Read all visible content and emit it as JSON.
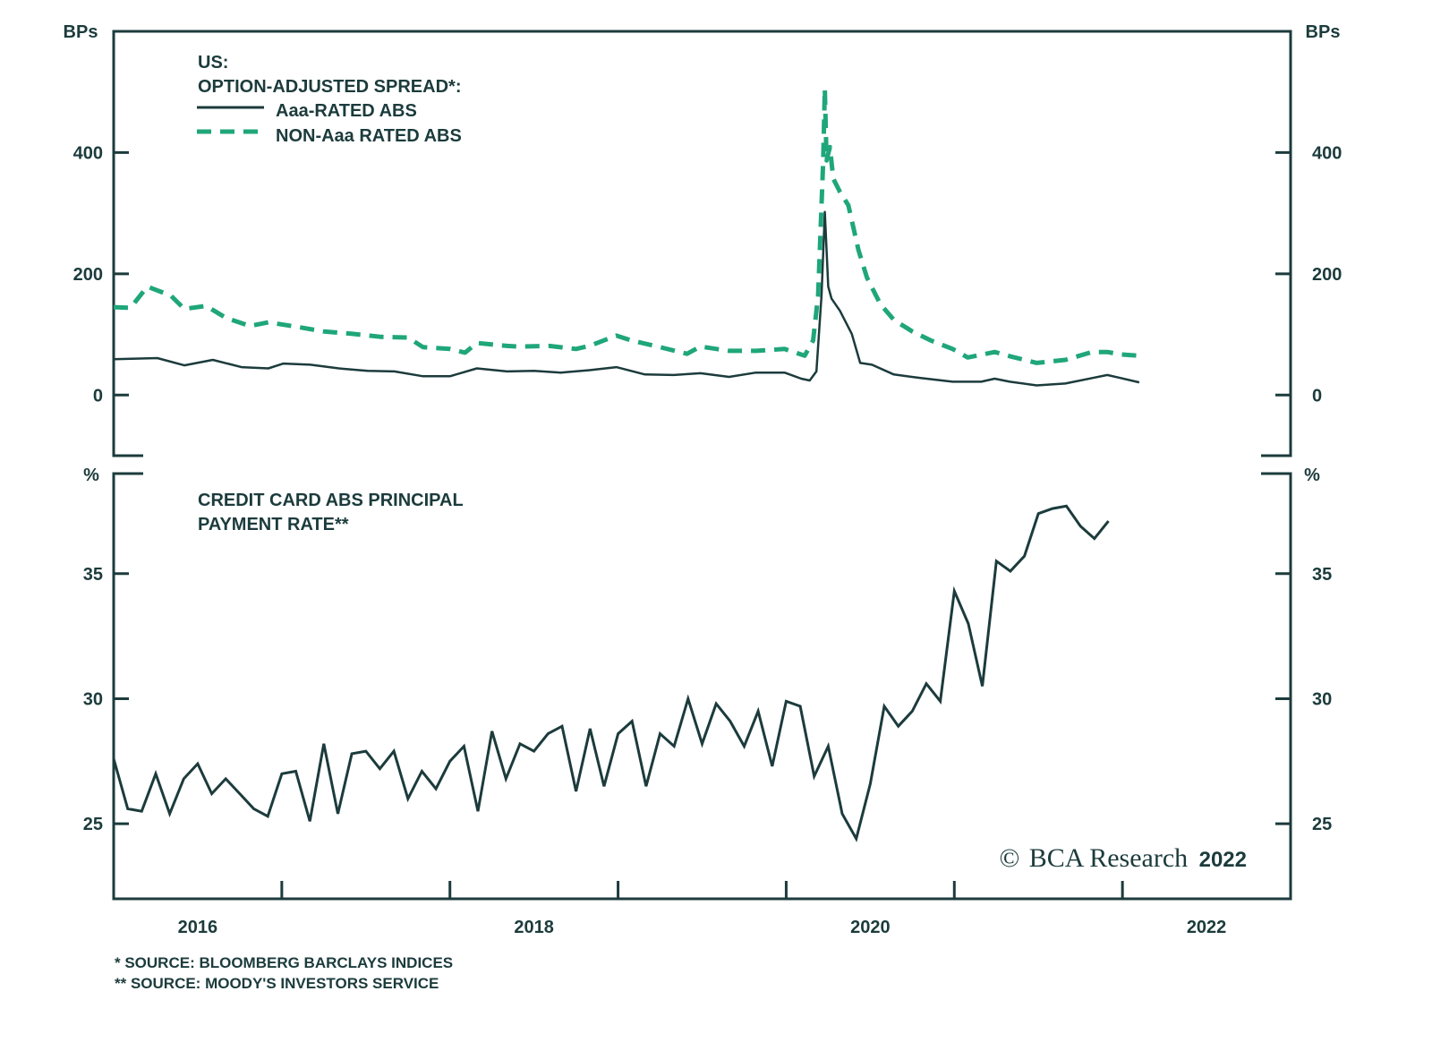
{
  "colors": {
    "dark": "#1c3b3c",
    "green": "#1fa67a"
  },
  "chart_data": [
    {
      "type": "line",
      "title": "US: OPTION-ADJUSTED SPREAD*:",
      "title_line1": "US:",
      "title_line2": "OPTION-ADJUSTED SPREAD*:",
      "ylabel": "BPs",
      "ylim": [
        -100,
        600
      ],
      "yticks": [
        0,
        200,
        400
      ],
      "ytick_labels": [
        "0",
        "200",
        "400"
      ],
      "xlim": [
        2016,
        2023
      ],
      "legend_placement": "top-left",
      "series": [
        {
          "name": "Aaa-RATED ABS",
          "style": "solid",
          "x": [
            2016.0,
            2016.26,
            2016.42,
            2016.59,
            2016.76,
            2016.92,
            2017.01,
            2017.17,
            2017.34,
            2017.51,
            2017.67,
            2017.84,
            2018.0,
            2018.16,
            2018.34,
            2018.5,
            2018.66,
            2018.83,
            2018.99,
            2019.16,
            2019.33,
            2019.49,
            2019.66,
            2019.82,
            2019.99,
            2020.09,
            2020.14,
            2020.18,
            2020.21,
            2020.23,
            2020.25,
            2020.27,
            2020.32,
            2020.39,
            2020.44,
            2020.51,
            2020.64,
            2020.8,
            2020.99,
            2021.16,
            2021.24,
            2021.33,
            2021.49,
            2021.66,
            2021.82,
            2021.91,
            2021.99,
            2022.1
          ],
          "y": [
            59,
            61,
            49,
            58,
            46,
            44,
            52,
            50,
            44,
            40,
            39,
            31,
            31,
            44,
            39,
            40,
            37,
            41,
            46,
            34,
            33,
            36,
            30,
            37,
            37,
            27,
            24,
            39,
            164,
            302,
            179,
            159,
            139,
            101,
            53,
            50,
            34,
            28,
            22,
            22,
            27,
            22,
            16,
            19,
            28,
            33,
            28,
            21
          ]
        },
        {
          "name": "NON-Aaa RATED ABS",
          "style": "dashed",
          "x": [
            2016.0,
            2016.1,
            2016.2,
            2016.34,
            2016.42,
            2016.55,
            2016.67,
            2016.81,
            2016.92,
            2017.08,
            2017.25,
            2017.42,
            2017.59,
            2017.75,
            2017.84,
            2018.0,
            2018.09,
            2018.16,
            2018.34,
            2018.41,
            2018.59,
            2018.75,
            2018.83,
            2018.99,
            2019.08,
            2019.25,
            2019.41,
            2019.49,
            2019.66,
            2019.82,
            2019.99,
            2020.11,
            2020.16,
            2020.19,
            2020.22,
            2020.23,
            2020.24,
            2020.26,
            2020.28,
            2020.32,
            2020.37,
            2020.43,
            2020.48,
            2020.56,
            2020.64,
            2020.75,
            2020.86,
            2020.99,
            2021.08,
            2021.24,
            2021.33,
            2021.49,
            2021.66,
            2021.82,
            2021.91,
            2021.99,
            2022.1
          ],
          "y": [
            145,
            144,
            179,
            164,
            142,
            147,
            127,
            114,
            120,
            113,
            105,
            101,
            96,
            95,
            79,
            76,
            70,
            86,
            81,
            80,
            81,
            76,
            81,
            98,
            90,
            79,
            68,
            80,
            73,
            73,
            76,
            65,
            90,
            164,
            387,
            505,
            387,
            409,
            357,
            335,
            313,
            239,
            194,
            150,
            124,
            105,
            90,
            76,
            62,
            71,
            64,
            53,
            58,
            71,
            71,
            67,
            65
          ]
        }
      ]
    },
    {
      "type": "line",
      "title": "CREDIT CARD ABS PRINCIPAL PAYMENT RATE**",
      "title_line1": "CREDIT CARD ABS PRINCIPAL",
      "title_line2": "PAYMENT RATE**",
      "ylabel": "%",
      "ylim": [
        22,
        39
      ],
      "yticks": [
        25,
        30,
        35
      ],
      "ytick_labels": [
        "25",
        "30",
        "35"
      ],
      "xlim": [
        2016,
        2023
      ],
      "xtick_labels": [
        "2016",
        "2018",
        "2020",
        "2022"
      ],
      "x_start": "2016-01",
      "x_frequency": "monthly",
      "series": [
        {
          "name": "CREDIT CARD ABS PRINCIPAL PAYMENT RATE",
          "style": "solid",
          "y": [
            27.6,
            25.6,
            25.5,
            27.0,
            25.4,
            26.8,
            27.4,
            26.2,
            26.8,
            26.2,
            25.6,
            25.3,
            27.0,
            27.1,
            25.1,
            28.2,
            25.4,
            27.8,
            27.9,
            27.2,
            27.9,
            26.0,
            27.1,
            26.4,
            27.5,
            28.1,
            25.5,
            28.7,
            26.8,
            28.2,
            27.9,
            28.6,
            28.9,
            26.3,
            28.8,
            26.5,
            28.6,
            29.1,
            26.5,
            28.6,
            28.1,
            30.0,
            28.2,
            29.8,
            29.1,
            28.1,
            29.5,
            27.3,
            29.9,
            29.7,
            26.9,
            28.1,
            25.4,
            24.4,
            26.6,
            29.7,
            28.9,
            29.5,
            30.6,
            29.9,
            34.3,
            33.0,
            30.5,
            35.5,
            35.1,
            35.7,
            37.4,
            37.6,
            37.7,
            36.9,
            36.4,
            37.1
          ]
        }
      ]
    }
  ],
  "footnotes": [
    "* SOURCE: BLOOMBERG BARCLAYS INDICES",
    "** SOURCE: MOODY'S INVESTORS SERVICE"
  ],
  "copyright_symbol": "©",
  "copyright_brand": "BCA Research",
  "copyright_year": "2022"
}
